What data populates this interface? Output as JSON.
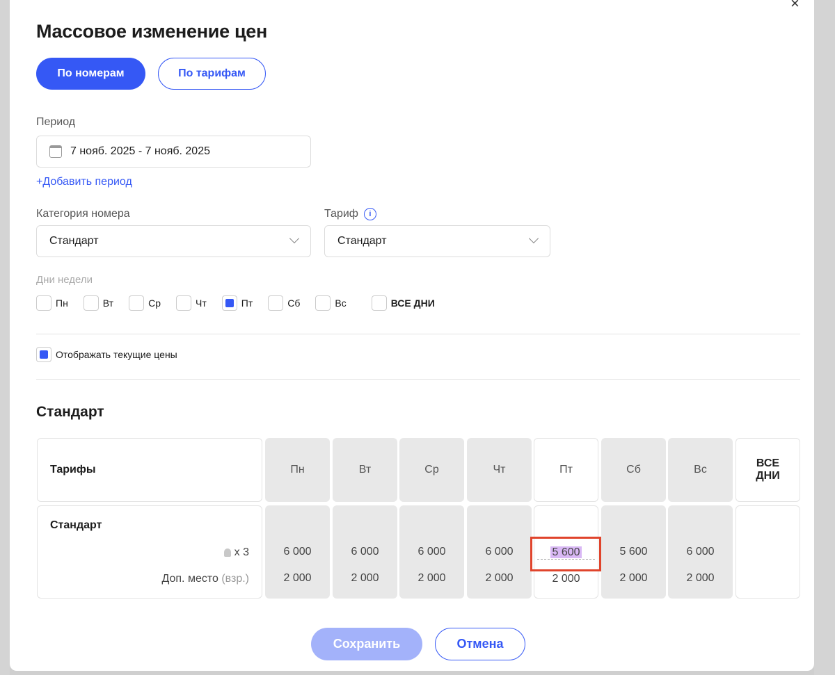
{
  "title": "Массовое изменение цен",
  "tabs": [
    "По номерам",
    "По тарифам"
  ],
  "period": {
    "label": "Период",
    "value": "7 нояб. 2025 - 7 нояб. 2025",
    "add": "+Добавить период"
  },
  "category": {
    "label": "Категория номера",
    "value": "Стандарт"
  },
  "tariff": {
    "label": "Тариф",
    "value": "Стандарт"
  },
  "weekdays": {
    "label": "Дни недели",
    "items": [
      {
        "l": "Пн",
        "c": false
      },
      {
        "l": "Вт",
        "c": false
      },
      {
        "l": "Ср",
        "c": false
      },
      {
        "l": "Чт",
        "c": false
      },
      {
        "l": "Пт",
        "c": true
      },
      {
        "l": "Сб",
        "c": false
      },
      {
        "l": "Вс",
        "c": false
      }
    ],
    "all": "ВСЕ ДНИ"
  },
  "show_current": {
    "label": "Отображать текущие цены",
    "checked": true
  },
  "section": "Стандарт",
  "table": {
    "head": "Тарифы",
    "days": [
      "Пн",
      "Вт",
      "Ср",
      "Чт",
      "Пт",
      "Сб",
      "Вс",
      "ВСЕ ДНИ"
    ],
    "row": {
      "name": "Стандарт",
      "guests": "x 3",
      "extra": "Доп. место",
      "extra_note": "(взр.)",
      "main": [
        "6 000",
        "6 000",
        "6 000",
        "6 000",
        "5 600",
        "5 600",
        "6 000",
        ""
      ],
      "extra_vals": [
        "2 000",
        "2 000",
        "2 000",
        "2 000",
        "2 000",
        "2 000",
        "2 000",
        ""
      ]
    }
  },
  "buttons": {
    "save": "Сохранить",
    "cancel": "Отмена"
  },
  "colors": {
    "accent": "#3558f5",
    "highlight": "#d9b8f5",
    "annotation": "#e0442c"
  }
}
